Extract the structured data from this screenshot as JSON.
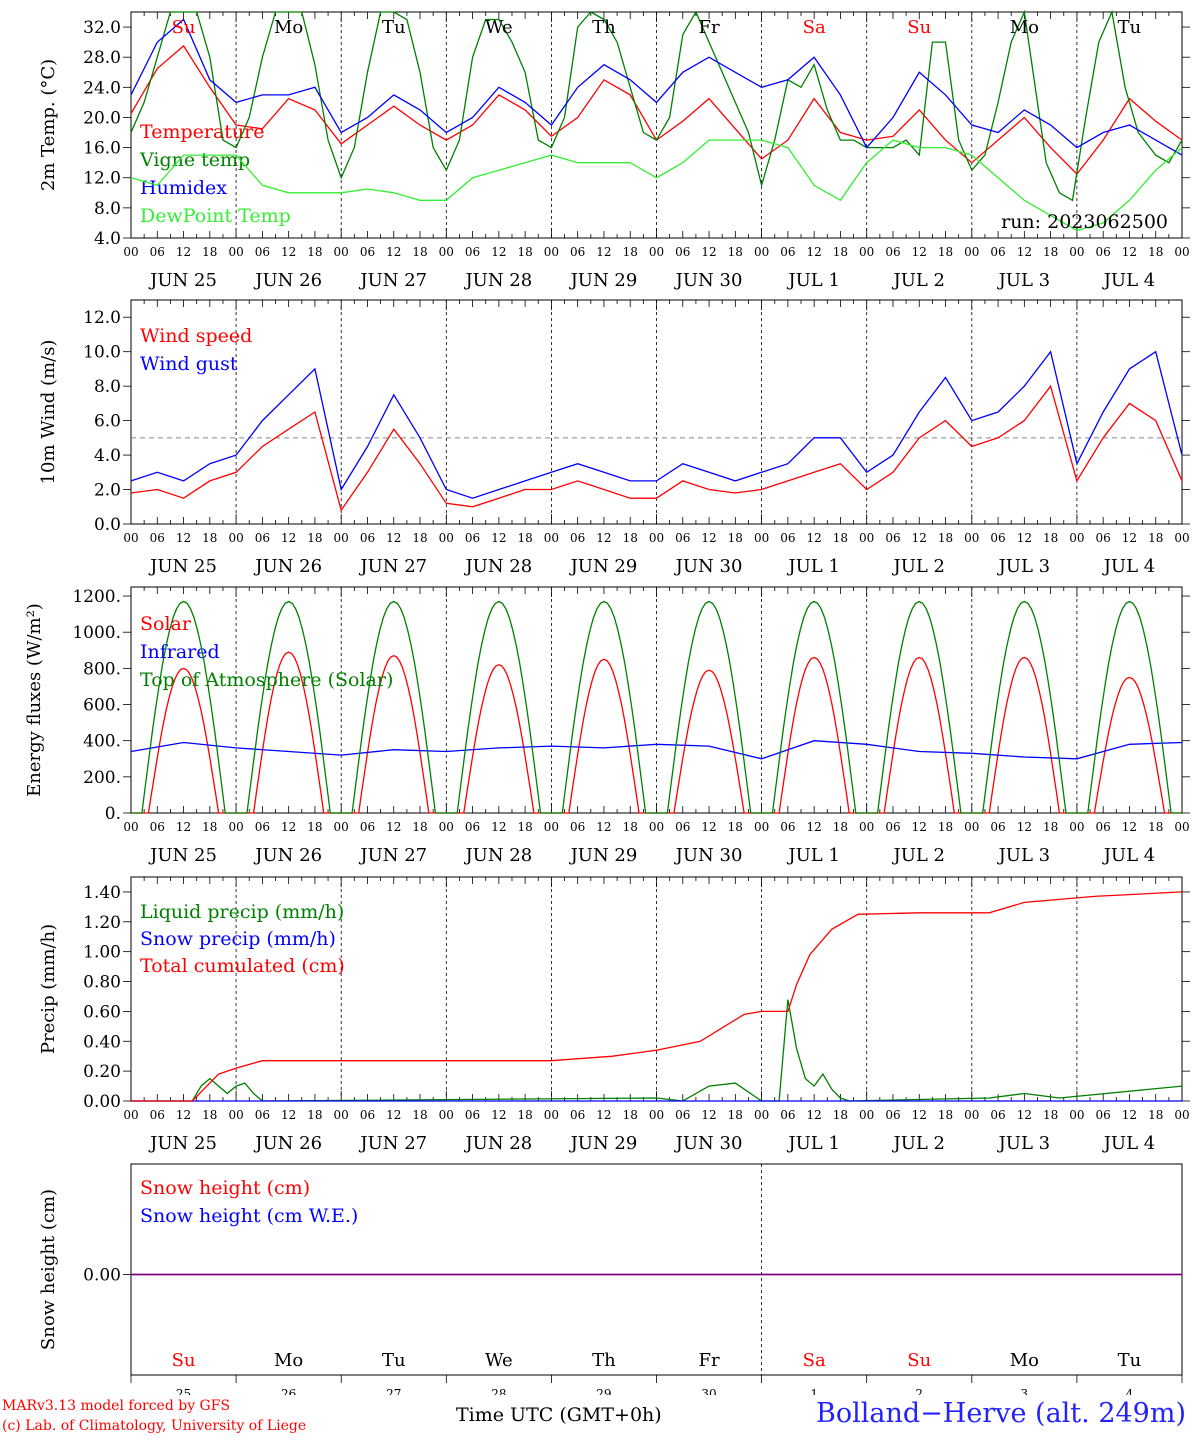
{
  "run_label": "run: 2023062500",
  "x_axis_label": "Time UTC (GMT+0h)",
  "station": "Bolland−Herve (alt. 249m)",
  "credits": [
    "MARv3.13 model forced by GFS",
    "(c) Lab. of Climatology, University of Liege"
  ],
  "colors": {
    "red": "#ff0000",
    "green": "#008000",
    "blue": "#0000ff",
    "light_green": "#33ee33",
    "snow_line": "#800080"
  },
  "time": {
    "days": 10,
    "hour_ticks": [
      "00",
      "06",
      "12",
      "18"
    ]
  },
  "day_names": [
    "Su",
    "Mo",
    "Tu",
    "We",
    "Th",
    "Fr",
    "Sa",
    "Su",
    "Mo",
    "Tu"
  ],
  "weekend_day_indices": [
    0,
    6,
    7
  ],
  "date_labels": [
    "JUN 25",
    "JUN 26",
    "JUN 27",
    "JUN 28",
    "JUN 29",
    "JUN 30",
    "JUL  1",
    "JUL  2",
    "JUL  3",
    "JUL  4"
  ],
  "bottom_day_numbers": [
    "25",
    "26",
    "27",
    "28",
    "29",
    "30",
    "1",
    "2",
    "3",
    "4"
  ],
  "bottom_month_labels": [
    "JUN",
    "JUL"
  ],
  "chart_data": [
    {
      "id": "temperature",
      "type": "line",
      "ylabel": "2m Temp. (°C)",
      "yticks": [
        "4.0",
        "8.0",
        "12.0",
        "16.0",
        "20.0",
        "24.0",
        "28.0",
        "32.0"
      ],
      "ylim": [
        4,
        34
      ],
      "x_unit": "hours from 2023-06-25 00 UTC",
      "series": [
        {
          "name": "Temperature",
          "color": "#ff0000",
          "x": [
            0,
            6,
            12,
            18,
            24,
            30,
            36,
            42,
            48,
            54,
            60,
            66,
            72,
            78,
            84,
            90,
            96,
            102,
            108,
            114,
            120,
            126,
            132,
            138,
            144,
            150,
            156,
            162,
            168,
            174,
            180,
            186,
            192,
            198,
            204,
            210,
            216,
            222,
            228,
            234,
            240
          ],
          "y": [
            20.5,
            26.5,
            29.5,
            24,
            19,
            18.5,
            22.5,
            21,
            16.5,
            19,
            21.5,
            19,
            17,
            19,
            23,
            21,
            17.5,
            20,
            25,
            23,
            17,
            19.5,
            22.5,
            18.5,
            14.5,
            17,
            22.5,
            18,
            17,
            17.5,
            21,
            17,
            14,
            17,
            20,
            16,
            12.5,
            17,
            22.5,
            19.5,
            17
          ]
        },
        {
          "name": "Vigne temp",
          "color": "#008000",
          "x": [
            0,
            3,
            6,
            9,
            12,
            15,
            18,
            21,
            24,
            27,
            30,
            33,
            36,
            39,
            42,
            45,
            48,
            51,
            54,
            57,
            60,
            63,
            66,
            69,
            72,
            75,
            78,
            81,
            84,
            87,
            90,
            93,
            96,
            99,
            102,
            105,
            108,
            111,
            114,
            117,
            120,
            123,
            126,
            129,
            132,
            135,
            138,
            141,
            144,
            147,
            150,
            153,
            156,
            159,
            162,
            165,
            168,
            171,
            174,
            177,
            180,
            183,
            186,
            189,
            192,
            195,
            198,
            201,
            204,
            209,
            212,
            215,
            218,
            221,
            224,
            227,
            230,
            234,
            237,
            240
          ],
          "y": [
            18,
            22,
            28,
            34,
            34,
            34,
            28,
            17,
            16,
            20,
            28,
            34,
            34,
            34,
            27,
            17,
            12,
            16,
            26,
            34,
            34,
            33,
            26,
            16,
            13,
            17,
            28,
            33,
            33,
            30,
            26,
            17,
            16,
            20,
            32,
            34,
            33,
            30,
            24,
            18,
            17,
            20,
            31,
            34,
            30,
            26,
            22,
            18,
            11,
            17,
            25,
            24,
            27,
            21,
            17,
            17,
            16,
            16,
            16,
            17,
            15,
            30,
            30,
            17,
            13,
            15,
            22,
            30,
            34,
            14,
            10,
            9,
            20,
            30,
            34,
            24,
            18,
            15,
            14,
            17
          ]
        },
        {
          "name": "Humidex",
          "color": "#0000ff",
          "x": [
            0,
            6,
            12,
            18,
            24,
            30,
            36,
            42,
            48,
            54,
            60,
            66,
            72,
            78,
            84,
            90,
            96,
            102,
            108,
            114,
            120,
            126,
            132,
            138,
            144,
            150,
            156,
            162,
            168,
            174,
            180,
            186,
            192,
            198,
            204,
            210,
            216,
            222,
            228,
            234,
            240
          ],
          "y": [
            23,
            30,
            33,
            25,
            22,
            23,
            23,
            24,
            18,
            20,
            23,
            21,
            18,
            20,
            24,
            22,
            19,
            24,
            27,
            25,
            22,
            26,
            28,
            26,
            24,
            25,
            28,
            23,
            16,
            20,
            26,
            23,
            19,
            18,
            21,
            19,
            16,
            18,
            19,
            17,
            15
          ]
        },
        {
          "name": "DewPoint Temp",
          "color": "#33ee33",
          "x": [
            0,
            6,
            12,
            18,
            24,
            30,
            36,
            42,
            48,
            54,
            60,
            66,
            72,
            78,
            84,
            90,
            96,
            102,
            108,
            114,
            120,
            126,
            132,
            138,
            144,
            150,
            156,
            162,
            168,
            174,
            180,
            186,
            192,
            198,
            204,
            210,
            216,
            222,
            228,
            234,
            240
          ],
          "y": [
            12,
            11,
            15,
            15,
            15,
            11,
            10,
            10,
            10,
            10.5,
            10,
            9,
            9,
            12,
            13,
            14,
            15,
            14,
            14,
            14,
            12,
            14,
            17,
            17,
            17,
            16,
            11,
            9,
            14,
            17,
            16,
            16,
            15,
            12,
            9,
            7,
            5,
            6,
            9,
            13,
            16
          ]
        }
      ]
    },
    {
      "id": "wind",
      "type": "line",
      "ylabel": "10m Wind (m/s)",
      "yticks": [
        "0.0",
        "2.0",
        "4.0",
        "6.0",
        "8.0",
        "10.0",
        "12.0"
      ],
      "ylim": [
        0,
        13
      ],
      "reference_line": 5,
      "series": [
        {
          "name": "Wind speed",
          "color": "#ff0000",
          "x": [
            0,
            6,
            12,
            18,
            24,
            30,
            36,
            42,
            48,
            54,
            60,
            66,
            72,
            78,
            84,
            90,
            96,
            102,
            108,
            114,
            120,
            126,
            132,
            138,
            144,
            150,
            156,
            162,
            168,
            174,
            180,
            186,
            192,
            198,
            204,
            210,
            216,
            222,
            228,
            234,
            240
          ],
          "y": [
            1.8,
            2,
            1.5,
            2.5,
            3,
            4.5,
            5.5,
            6.5,
            0.8,
            3,
            5.5,
            3.5,
            1.2,
            1,
            1.5,
            2,
            2,
            2.5,
            2,
            1.5,
            1.5,
            2.5,
            2,
            1.8,
            2,
            2.5,
            3,
            3.5,
            2,
            3,
            5,
            6,
            4.5,
            5,
            6,
            8,
            2.5,
            5,
            7,
            6,
            2.5
          ]
        },
        {
          "name": "Wind gust",
          "color": "#0000ff",
          "x": [
            0,
            6,
            12,
            18,
            24,
            30,
            36,
            42,
            48,
            54,
            60,
            66,
            72,
            78,
            84,
            90,
            96,
            102,
            108,
            114,
            120,
            126,
            132,
            138,
            144,
            150,
            156,
            162,
            168,
            174,
            180,
            186,
            192,
            198,
            204,
            210,
            216,
            222,
            228,
            234,
            240
          ],
          "y": [
            2.5,
            3,
            2.5,
            3.5,
            4,
            6,
            7.5,
            9,
            2,
            4.5,
            7.5,
            5,
            2,
            1.5,
            2,
            2.5,
            3,
            3.5,
            3,
            2.5,
            2.5,
            3.5,
            3,
            2.5,
            3,
            3.5,
            5,
            5,
            3,
            4,
            6.5,
            8.5,
            6,
            6.5,
            8,
            10,
            3.5,
            6.5,
            9,
            10,
            4
          ]
        }
      ]
    },
    {
      "id": "energy",
      "type": "line",
      "ylabel": "Energy fluxes (W/m²)",
      "yticks": [
        "0.",
        "200.",
        "400.",
        "600.",
        "800.",
        "1000.",
        "1200."
      ],
      "ylim": [
        0,
        1250
      ],
      "series": [
        {
          "name": "Solar",
          "color": "#ff0000",
          "kind": "daily_peak",
          "day_start_h": 4,
          "day_end_h": 20,
          "daily_peaks": [
            800,
            890,
            870,
            820,
            850,
            790,
            860,
            860,
            860,
            750
          ]
        },
        {
          "name": "Infrared",
          "color": "#0000ff",
          "x": [
            0,
            12,
            24,
            36,
            48,
            60,
            72,
            84,
            96,
            108,
            120,
            132,
            144,
            156,
            168,
            180,
            192,
            204,
            216,
            228,
            240
          ],
          "y": [
            340,
            390,
            360,
            340,
            320,
            350,
            340,
            360,
            370,
            360,
            380,
            370,
            300,
            400,
            380,
            340,
            330,
            310,
            300,
            380,
            390
          ]
        },
        {
          "name": "Top of Atmosphere (Solar)",
          "color": "#008000",
          "kind": "daily_peak",
          "day_start_h": 2.5,
          "day_end_h": 21.5,
          "daily_peaks": [
            1170,
            1170,
            1170,
            1170,
            1170,
            1170,
            1170,
            1170,
            1170,
            1170
          ]
        }
      ]
    },
    {
      "id": "precip",
      "type": "line",
      "ylabel": "Precip (mm/h)",
      "yticks": [
        "0.00",
        "0.20",
        "0.40",
        "0.60",
        "0.80",
        "1.00",
        "1.20",
        "1.40"
      ],
      "ylim": [
        0,
        1.5
      ],
      "series": [
        {
          "name": "Liquid precip (mm/h)",
          "color": "#008000",
          "x": [
            0,
            14,
            16,
            18,
            20,
            22,
            24,
            26,
            28,
            30,
            120,
            126,
            132,
            138,
            144,
            148,
            150,
            152,
            154,
            156,
            158,
            160,
            162,
            164,
            196,
            204,
            212,
            240
          ],
          "y": [
            0,
            0,
            0.1,
            0.15,
            0.1,
            0.05,
            0.1,
            0.12,
            0.05,
            0,
            0.02,
            0,
            0.1,
            0.12,
            0,
            0,
            0.68,
            0.35,
            0.15,
            0.1,
            0.18,
            0.08,
            0.02,
            0,
            0.02,
            0.05,
            0.02,
            0.1
          ]
        },
        {
          "name": "Snow precip (mm/h)",
          "color": "#0000ff",
          "x": [
            0,
            240
          ],
          "y": [
            0,
            0
          ]
        },
        {
          "name": "Total cumulated (cm)",
          "color": "#ff0000",
          "x": [
            0,
            14,
            20,
            24,
            30,
            36,
            48,
            96,
            110,
            120,
            130,
            140,
            144,
            150,
            152,
            155,
            160,
            166,
            180,
            196,
            204,
            220,
            240
          ],
          "y": [
            0,
            0,
            0.18,
            0.22,
            0.27,
            0.27,
            0.27,
            0.27,
            0.3,
            0.34,
            0.4,
            0.58,
            0.6,
            0.6,
            0.78,
            0.98,
            1.15,
            1.25,
            1.26,
            1.26,
            1.33,
            1.37,
            1.4
          ]
        }
      ]
    },
    {
      "id": "snow",
      "type": "line",
      "ylabel": "Snow height (cm)",
      "yticks": [
        "0.00"
      ],
      "series": [
        {
          "name": "Snow height (cm)",
          "color": "#ff0000",
          "x": [
            0,
            240
          ],
          "y": [
            0,
            0
          ]
        },
        {
          "name": "Snow height (cm W.E.)",
          "color": "#0000ff",
          "x": [
            0,
            240
          ],
          "y": [
            0,
            0
          ]
        }
      ]
    }
  ]
}
